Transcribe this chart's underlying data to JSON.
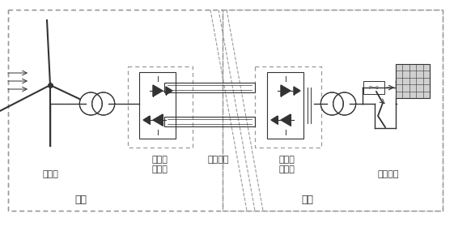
{
  "bg_color": "#ffffff",
  "line_color": "#333333",
  "dash_color": "#999999",
  "labels": {
    "wind_farm": "风电场",
    "wind_converter_l1": "风场侧",
    "wind_converter_l2": "换流站",
    "submarine_cable": "海底电缆",
    "grid_converter_l1": "电网侧",
    "grid_converter_l2": "换流站",
    "ac_grid": "交流主网",
    "offshore": "海上",
    "onshore": "岸上"
  },
  "font_size_label": 8,
  "font_size_section": 9
}
